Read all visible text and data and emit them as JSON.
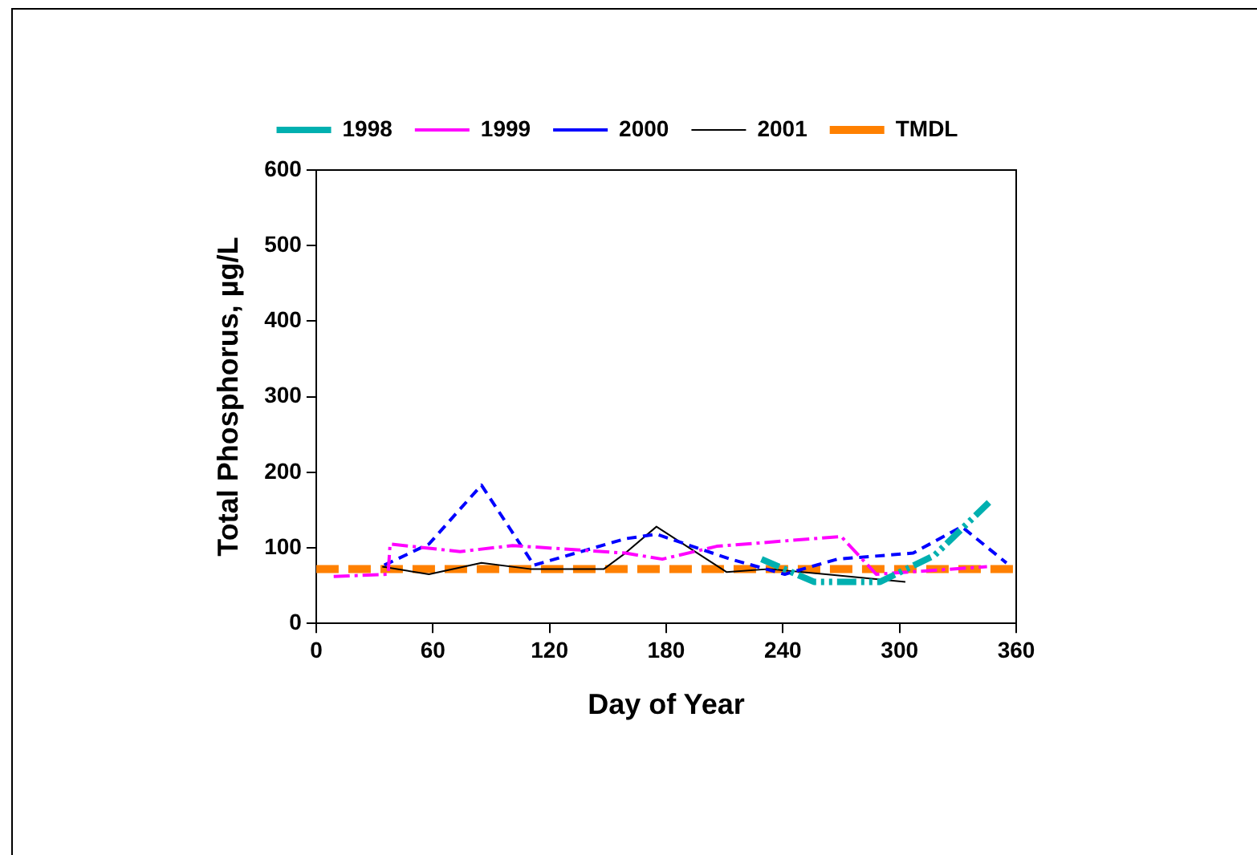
{
  "chart_data": {
    "type": "line",
    "xlabel": "Day of Year",
    "ylabel": "Total Phosphorus, µg/L",
    "xlim": [
      0,
      360
    ],
    "xticks": [
      0,
      60,
      120,
      180,
      240,
      300,
      360
    ],
    "ylim": [
      0,
      600
    ],
    "yticks": [
      0,
      100,
      200,
      300,
      400,
      500,
      600
    ],
    "grid": false,
    "legend": "top",
    "marker": "none",
    "series": [
      {
        "name": "1998",
        "color": "#00b0b0",
        "line_style": "dashdotdot",
        "x": [
          229,
          247,
          256,
          290,
          318,
          346
        ],
        "values": [
          85,
          65,
          55,
          55,
          90,
          160
        ]
      },
      {
        "name": "1999",
        "color": "#ff00ff",
        "line_style": "dashdot",
        "x": [
          9,
          37,
          38,
          74,
          101,
          159,
          178,
          206,
          270,
          288,
          345
        ],
        "values": [
          62,
          65,
          105,
          95,
          103,
          93,
          85,
          102,
          115,
          65,
          75
        ]
      },
      {
        "name": "2000",
        "color": "#0000ff",
        "line_style": "dashed",
        "x": [
          35,
          58,
          85,
          112,
          159,
          175,
          213,
          241,
          268,
          307,
          332,
          355
        ],
        "values": [
          77,
          105,
          183,
          77,
          112,
          118,
          85,
          65,
          85,
          93,
          128,
          80
        ]
      },
      {
        "name": "2001",
        "color": "#000000",
        "line_style": "solid",
        "x": [
          34,
          58,
          85,
          110,
          148,
          159,
          175,
          211,
          233,
          303
        ],
        "values": [
          75,
          65,
          80,
          72,
          72,
          93,
          128,
          68,
          72,
          55
        ]
      },
      {
        "name": "TMDL",
        "color": "#ff8000",
        "line_style": "dashed",
        "x": [
          0,
          360
        ],
        "values": [
          72,
          72
        ]
      }
    ]
  }
}
